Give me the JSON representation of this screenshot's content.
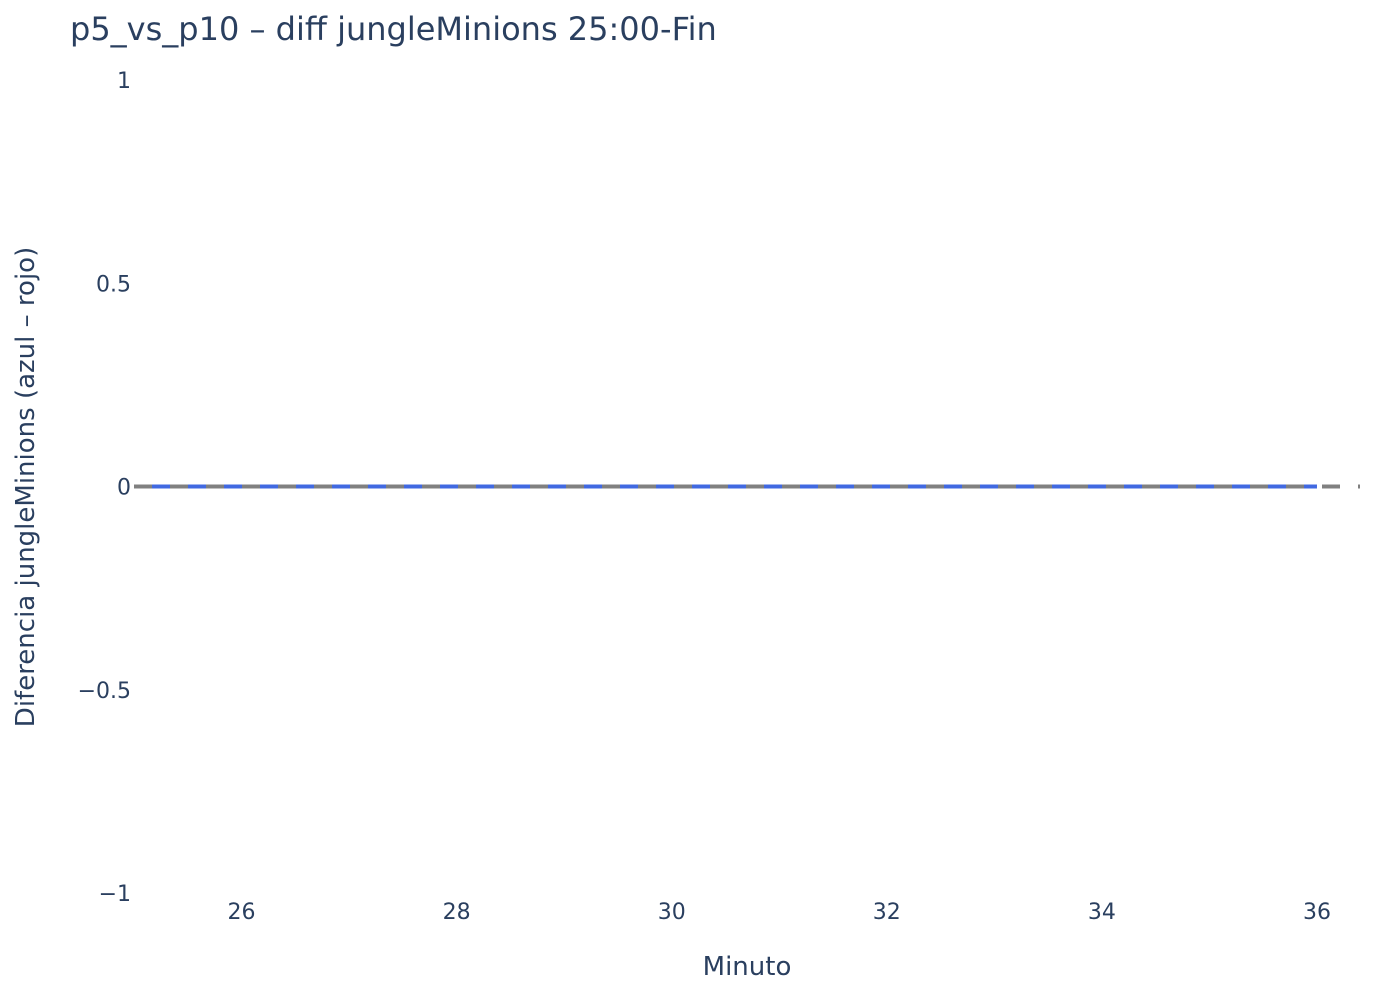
{
  "chart_data": {
    "type": "line",
    "title": "p5_vs_p10 – diff jungleMinions 25:00-Fin",
    "xlabel": "Minuto",
    "ylabel": "Diferencia jungleMinions (azul – rojo)",
    "xlim": [
      25,
      36.4
    ],
    "ylim": [
      -1,
      1
    ],
    "x_ticks": [
      26,
      28,
      30,
      32,
      34,
      36
    ],
    "y_ticks": [
      1,
      0.5,
      0,
      -0.5,
      -1
    ],
    "y_tick_labels": [
      "1",
      "0.5",
      "0",
      "−0.5",
      "−1"
    ],
    "grid": false,
    "series": [
      {
        "color": "#4169e1",
        "x": [
          25,
          26,
          27,
          28,
          29,
          30,
          31,
          32,
          33,
          34,
          35,
          36
        ],
        "y": [
          0,
          0,
          0,
          0,
          0,
          0,
          0,
          0,
          0,
          0,
          0,
          0
        ]
      }
    ],
    "reference_line": {
      "y": 0,
      "color": "#808080",
      "style": "dashed"
    }
  }
}
